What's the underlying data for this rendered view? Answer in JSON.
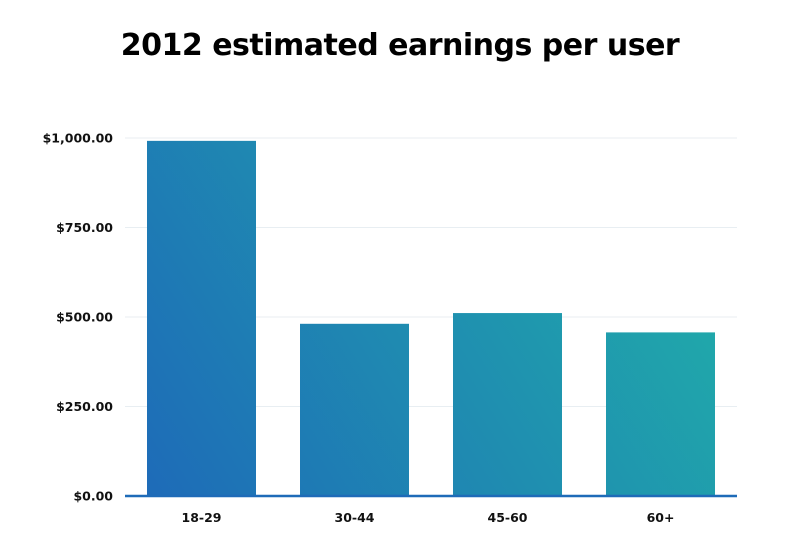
{
  "chart_data": {
    "type": "bar",
    "title": "2012 estimated earnings per user",
    "xlabel": "",
    "ylabel": "",
    "categories": [
      "18-29",
      "30-44",
      "45-60",
      "60+"
    ],
    "values": [
      992,
      481,
      511,
      457
    ],
    "ylim": [
      0,
      1000
    ],
    "yticks": [
      0,
      250,
      500,
      750,
      1000
    ],
    "ytick_labels": [
      "$0.00",
      "$250.00",
      "$500.00",
      "$750.00",
      "$1,000.00"
    ],
    "grid": true,
    "legend": "none",
    "colors": {
      "gradient_start": "#1e6bb8",
      "gradient_end": "#20b2a8",
      "axis": "#1e6bb8",
      "grid": "#e8eef2"
    }
  }
}
